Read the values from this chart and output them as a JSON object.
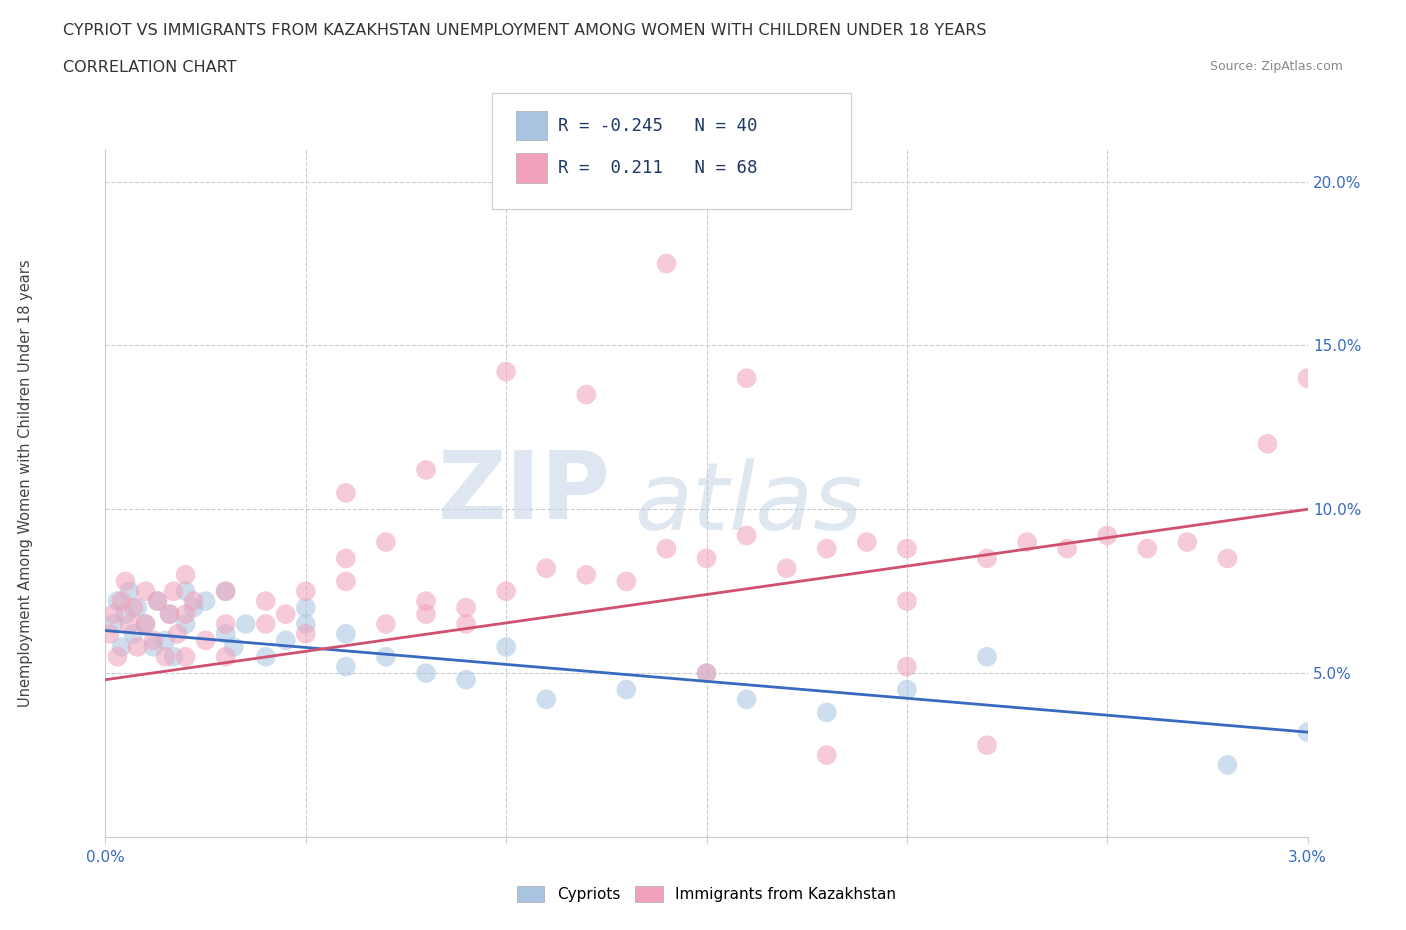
{
  "title_line1": "CYPRIOT VS IMMIGRANTS FROM KAZAKHSTAN UNEMPLOYMENT AMONG WOMEN WITH CHILDREN UNDER 18 YEARS",
  "title_line2": "CORRELATION CHART",
  "source": "Source: ZipAtlas.com",
  "ylabel": "Unemployment Among Women with Children Under 18 years",
  "xlim": [
    0.0,
    0.03
  ],
  "ylim": [
    0.0,
    0.21
  ],
  "xticks": [
    0.0,
    0.005,
    0.01,
    0.015,
    0.02,
    0.025,
    0.03
  ],
  "yticks": [
    0.0,
    0.05,
    0.1,
    0.15,
    0.2
  ],
  "cypriot_color": "#a8c4e0",
  "kazakh_color": "#f0a0b8",
  "cypriot_line_color": "#3a6abf",
  "kazakh_line_color": "#d05070",
  "legend_R1": "-0.245",
  "legend_N1": "40",
  "legend_R2": " 0.211",
  "legend_N2": "68",
  "watermark_ZIP": "ZIP",
  "watermark_atlas": "atlas",
  "background_color": "#ffffff",
  "grid_color": "#cccccc",
  "cy_line_x0": 0.0,
  "cy_line_y0": 0.063,
  "cy_line_x1": 0.03,
  "cy_line_y1": 0.032,
  "kz_line_x0": 0.0,
  "kz_line_y0": 0.048,
  "kz_line_x1": 0.03,
  "kz_line_y1": 0.1,
  "cypriot_x": [
    0.0002,
    0.0003,
    0.0004,
    0.0005,
    0.0006,
    0.0007,
    0.0008,
    0.001,
    0.0012,
    0.0013,
    0.0015,
    0.0016,
    0.0017,
    0.002,
    0.002,
    0.0022,
    0.0025,
    0.003,
    0.003,
    0.0032,
    0.0035,
    0.004,
    0.0045,
    0.005,
    0.005,
    0.006,
    0.006,
    0.007,
    0.008,
    0.009,
    0.01,
    0.011,
    0.013,
    0.015,
    0.016,
    0.018,
    0.02,
    0.022,
    0.028,
    0.03
  ],
  "cypriot_y": [
    0.065,
    0.072,
    0.058,
    0.068,
    0.075,
    0.062,
    0.07,
    0.065,
    0.058,
    0.072,
    0.06,
    0.068,
    0.055,
    0.075,
    0.065,
    0.07,
    0.072,
    0.062,
    0.075,
    0.058,
    0.065,
    0.055,
    0.06,
    0.07,
    0.065,
    0.052,
    0.062,
    0.055,
    0.05,
    0.048,
    0.058,
    0.042,
    0.045,
    0.05,
    0.042,
    0.038,
    0.045,
    0.055,
    0.022,
    0.032
  ],
  "kazakh_x": [
    0.0001,
    0.0002,
    0.0003,
    0.0004,
    0.0005,
    0.0006,
    0.0007,
    0.0008,
    0.001,
    0.001,
    0.0012,
    0.0013,
    0.0015,
    0.0016,
    0.0017,
    0.0018,
    0.002,
    0.002,
    0.002,
    0.0022,
    0.0025,
    0.003,
    0.003,
    0.003,
    0.004,
    0.004,
    0.0045,
    0.005,
    0.005,
    0.006,
    0.006,
    0.007,
    0.007,
    0.008,
    0.008,
    0.009,
    0.009,
    0.01,
    0.011,
    0.012,
    0.013,
    0.014,
    0.015,
    0.016,
    0.017,
    0.018,
    0.019,
    0.02,
    0.02,
    0.022,
    0.023,
    0.024,
    0.025,
    0.026,
    0.027,
    0.028,
    0.029,
    0.03,
    0.014,
    0.016,
    0.01,
    0.012,
    0.006,
    0.008,
    0.015,
    0.018,
    0.02,
    0.022
  ],
  "kazakh_y": [
    0.062,
    0.068,
    0.055,
    0.072,
    0.078,
    0.065,
    0.07,
    0.058,
    0.065,
    0.075,
    0.06,
    0.072,
    0.055,
    0.068,
    0.075,
    0.062,
    0.068,
    0.055,
    0.08,
    0.072,
    0.06,
    0.065,
    0.075,
    0.055,
    0.065,
    0.072,
    0.068,
    0.062,
    0.075,
    0.078,
    0.085,
    0.065,
    0.09,
    0.072,
    0.068,
    0.065,
    0.07,
    0.075,
    0.082,
    0.08,
    0.078,
    0.088,
    0.085,
    0.092,
    0.082,
    0.088,
    0.09,
    0.088,
    0.072,
    0.085,
    0.09,
    0.088,
    0.092,
    0.088,
    0.09,
    0.085,
    0.12,
    0.14,
    0.175,
    0.14,
    0.142,
    0.135,
    0.105,
    0.112,
    0.05,
    0.025,
    0.052,
    0.028
  ]
}
